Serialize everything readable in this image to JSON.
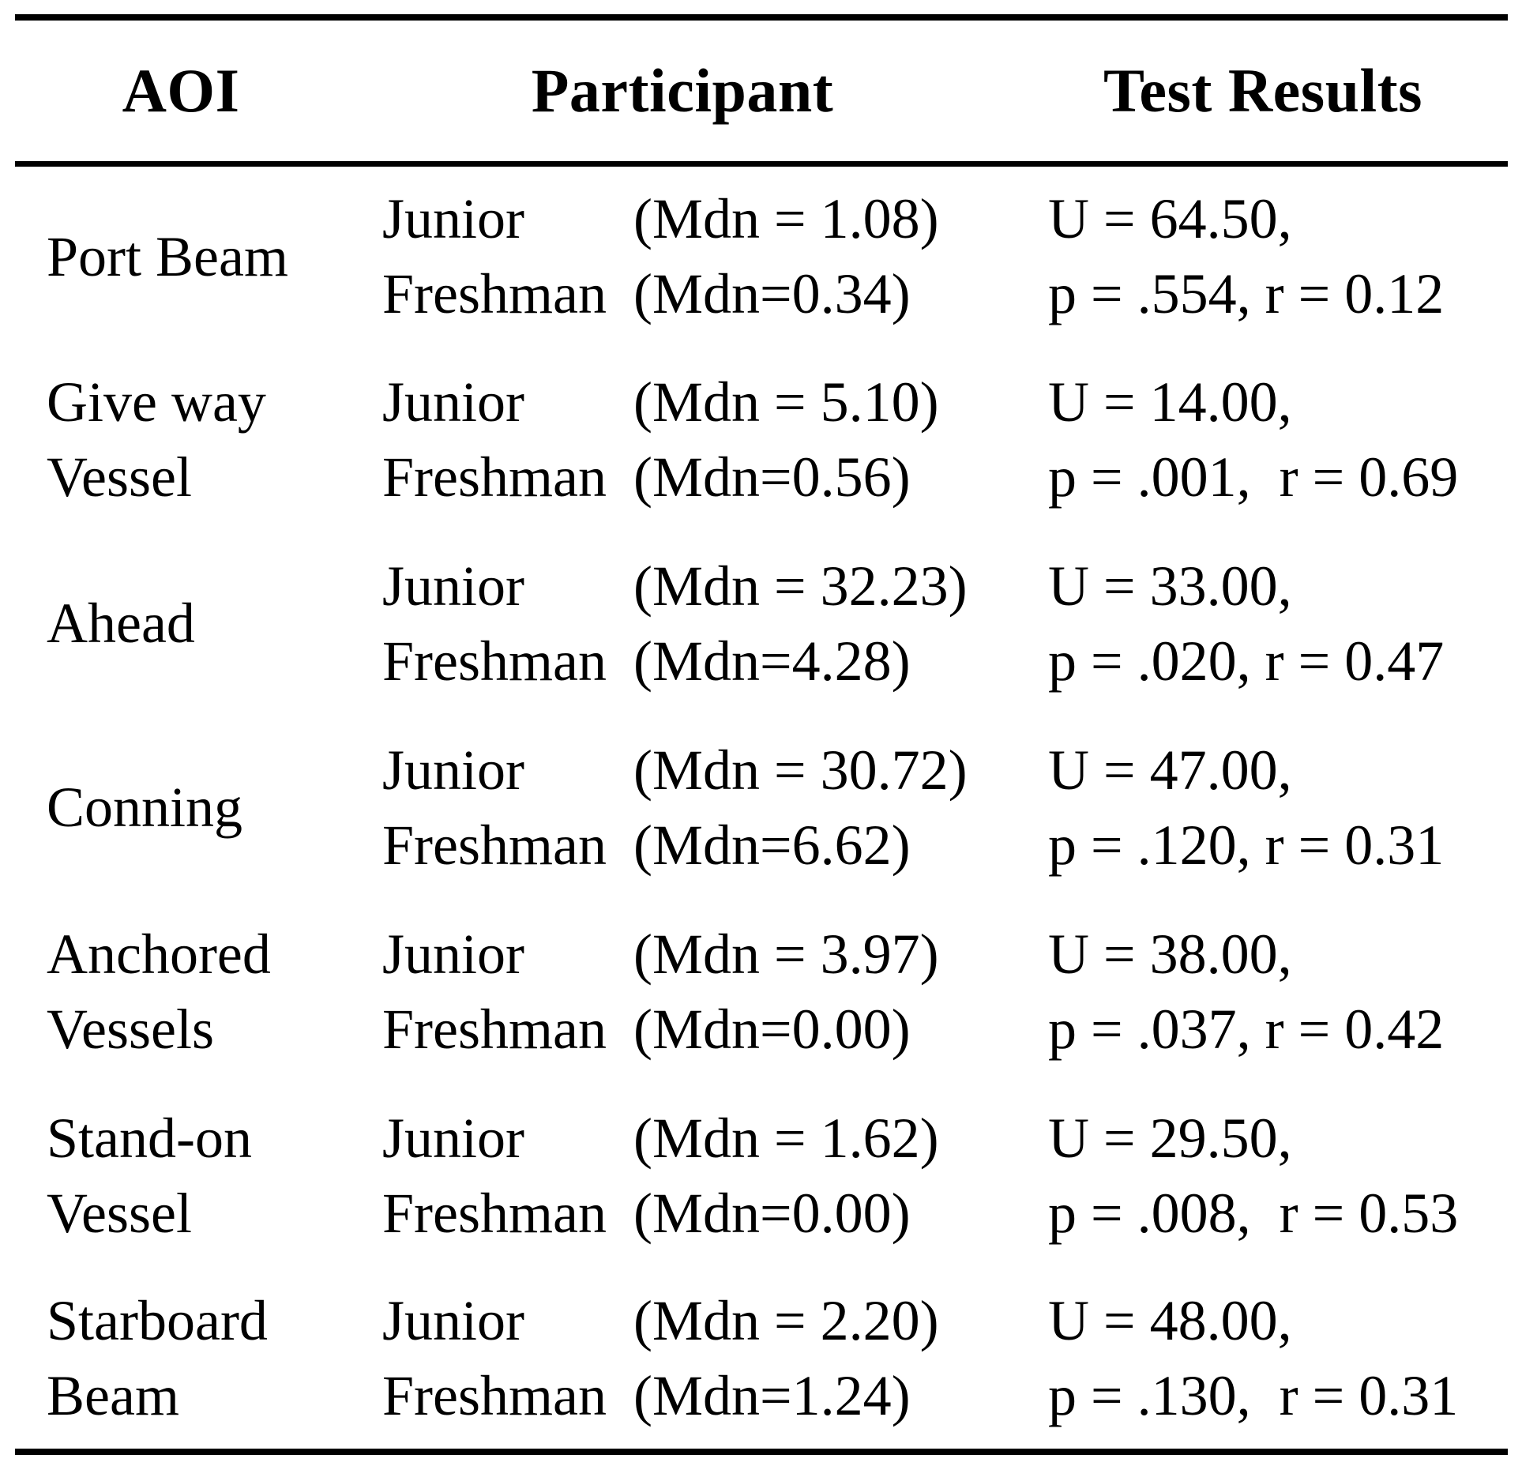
{
  "page": {
    "background": "#ffffff",
    "text_color": "#000000",
    "rule_color": "#000000"
  },
  "table": {
    "columns": [
      {
        "label": "AOI"
      },
      {
        "label": "Participant"
      },
      {
        "label": "Test Results"
      }
    ],
    "rows": [
      {
        "aoi": "Port Beam",
        "participants": [
          {
            "name": "Junior",
            "mdn": "(Mdn = 1.08)"
          },
          {
            "name": "Freshman",
            "mdn": "(Mdn=0.34)"
          }
        ],
        "test_results": [
          "U = 64.50,",
          "p = .554, r = 0.12"
        ]
      },
      {
        "aoi": "Give way\nVessel",
        "participants": [
          {
            "name": "Junior",
            "mdn": "(Mdn = 5.10)"
          },
          {
            "name": "Freshman",
            "mdn": "(Mdn=0.56)"
          }
        ],
        "test_results": [
          "U = 14.00,",
          "p = .001,  r = 0.69"
        ]
      },
      {
        "aoi": "Ahead",
        "participants": [
          {
            "name": "Junior",
            "mdn": "(Mdn = 32.23)"
          },
          {
            "name": "Freshman",
            "mdn": "(Mdn=4.28)"
          }
        ],
        "test_results": [
          "U = 33.00,",
          "p = .020, r = 0.47"
        ]
      },
      {
        "aoi": "Conning",
        "participants": [
          {
            "name": "Junior",
            "mdn": "(Mdn = 30.72)"
          },
          {
            "name": "Freshman",
            "mdn": "(Mdn=6.62)"
          }
        ],
        "test_results": [
          "U = 47.00,",
          "p = .120, r = 0.31"
        ]
      },
      {
        "aoi": "Anchored\nVessels",
        "participants": [
          {
            "name": "Junior",
            "mdn": "(Mdn = 3.97)"
          },
          {
            "name": "Freshman",
            "mdn": "(Mdn=0.00)"
          }
        ],
        "test_results": [
          "U = 38.00,",
          "p = .037, r = 0.42"
        ]
      },
      {
        "aoi": "Stand-on\nVessel",
        "participants": [
          {
            "name": "Junior",
            "mdn": "(Mdn = 1.62)"
          },
          {
            "name": "Freshman",
            "mdn": "(Mdn=0.00)"
          }
        ],
        "test_results": [
          "U = 29.50,",
          "p = .008,  r = 0.53"
        ]
      },
      {
        "aoi": "Starboard\nBeam",
        "participants": [
          {
            "name": "Junior",
            "mdn": "(Mdn = 2.20)"
          },
          {
            "name": "Freshman",
            "mdn": "(Mdn=1.24)"
          }
        ],
        "test_results": [
          "U = 48.00,",
          "p = .130,  r = 0.31"
        ]
      }
    ]
  }
}
